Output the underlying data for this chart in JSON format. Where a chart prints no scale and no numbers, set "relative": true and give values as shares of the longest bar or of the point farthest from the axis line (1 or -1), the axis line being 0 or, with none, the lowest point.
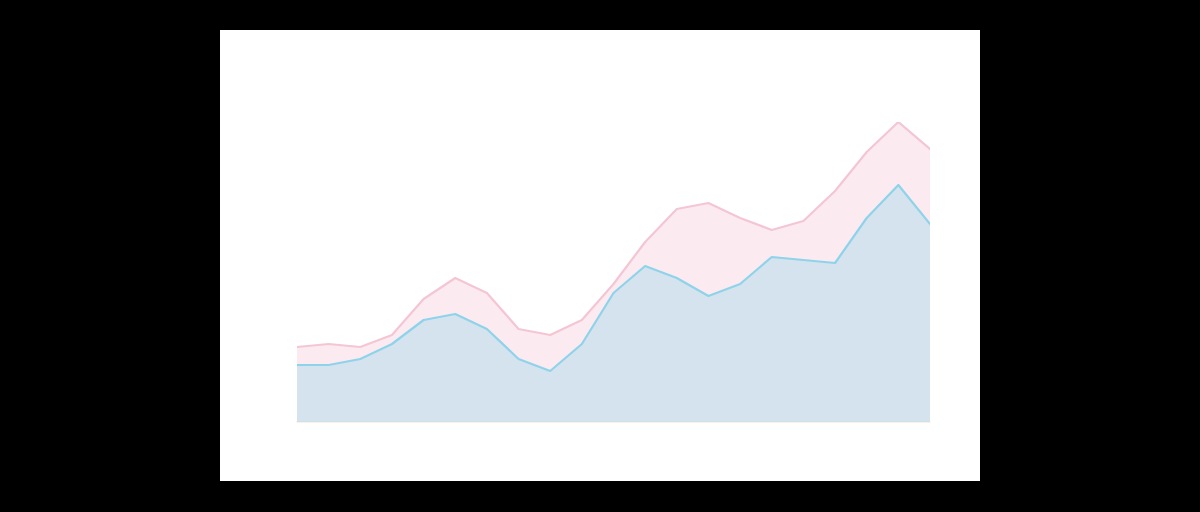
{
  "chart_data": {
    "type": "area",
    "relative": true,
    "categories": [
      null,
      null,
      null,
      null,
      null,
      null,
      null,
      null,
      null,
      null,
      null,
      null,
      null,
      null,
      null,
      null,
      null,
      null,
      null,
      null,
      null
    ],
    "series": [
      {
        "color": "#f4c6d4",
        "values": [
          0.25,
          0.26,
          0.25,
          0.29,
          0.41,
          0.48,
          0.43,
          0.31,
          0.29,
          0.34,
          0.46,
          0.6,
          0.71,
          0.73,
          0.68,
          0.64,
          0.67,
          0.77,
          0.9,
          1.0,
          0.91
        ]
      },
      {
        "color": "#8fd3ea",
        "values": [
          0.19,
          0.19,
          0.21,
          0.26,
          0.34,
          0.36,
          0.31,
          0.21,
          0.17,
          0.26,
          0.43,
          0.52,
          0.48,
          0.42,
          0.46,
          0.55,
          0.54,
          0.53,
          0.68,
          0.79,
          0.66
        ]
      }
    ],
    "grid": false,
    "legend": false
  }
}
